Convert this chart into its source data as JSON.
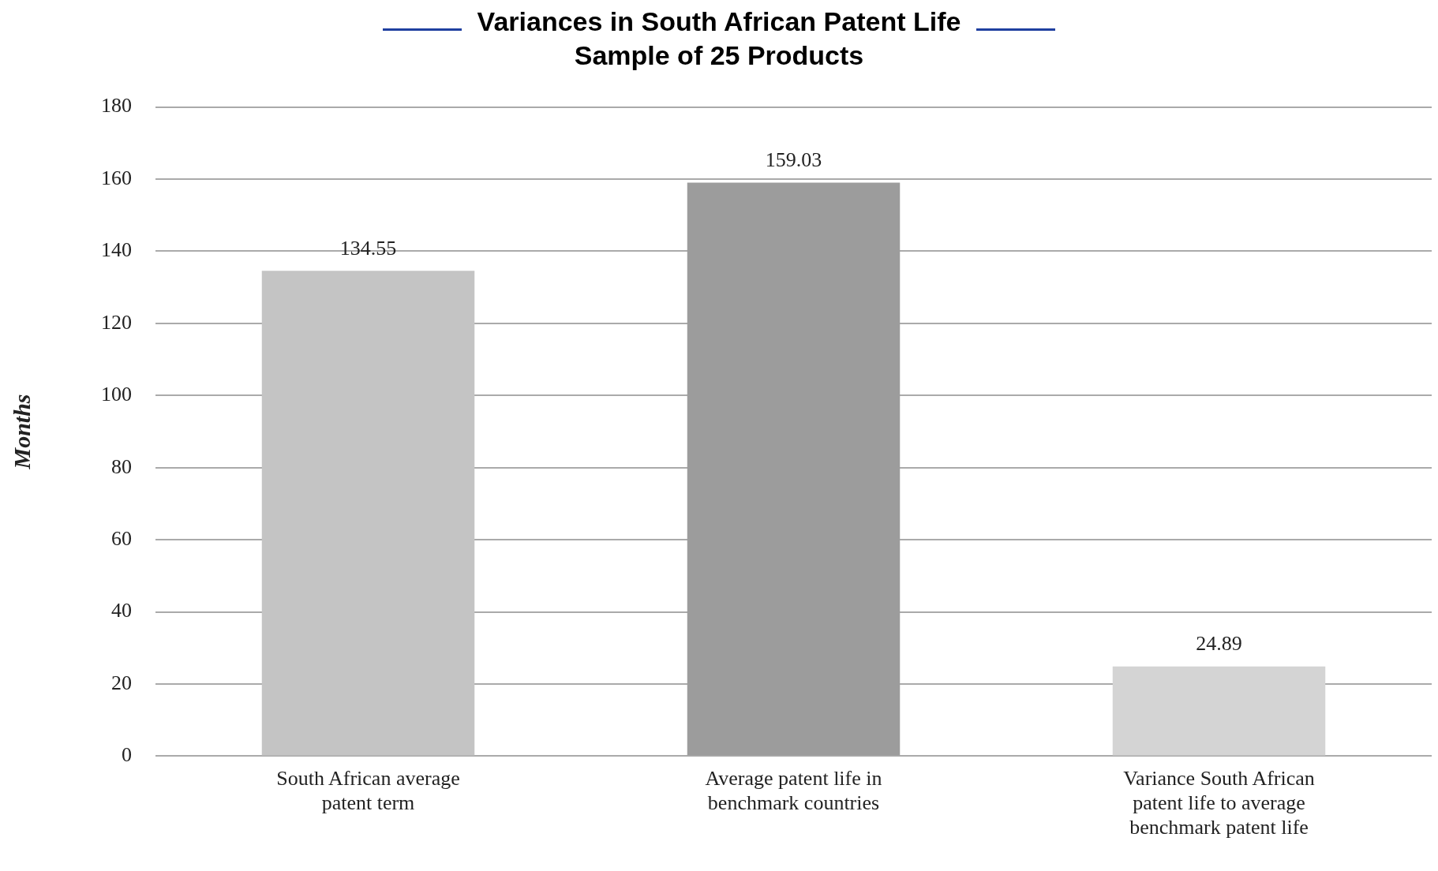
{
  "chart_data": {
    "type": "bar",
    "title": "Variances in South African Patent Life",
    "subtitle": "Sample of 25 Products",
    "ylabel": "Months",
    "categories": [
      "South African average patent term",
      "Average patent life in benchmark countries",
      "Variance South African patent life to average benchmark patent life"
    ],
    "values": [
      134.55,
      159.03,
      24.89
    ],
    "colors": [
      "#c4c4c4",
      "#9c9c9c",
      "#d4d4d4"
    ],
    "ylim": [
      0,
      180
    ],
    "yticks": [
      0,
      20,
      40,
      60,
      80,
      100,
      120,
      140,
      160,
      180
    ],
    "grid": "y",
    "data_labels": true,
    "legend": false
  }
}
